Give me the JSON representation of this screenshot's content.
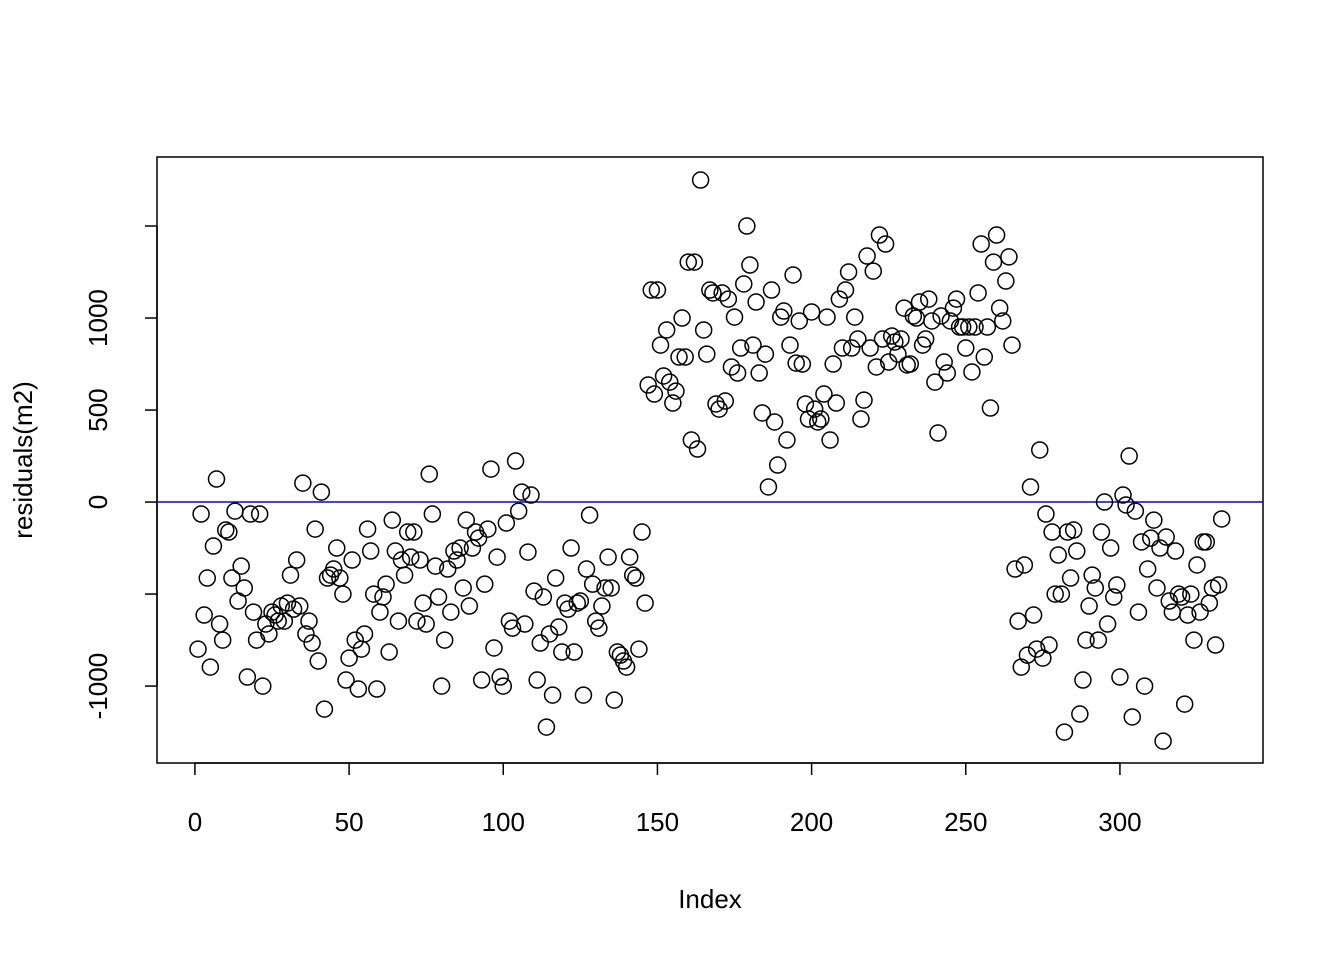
{
  "chart_data": {
    "type": "scatter",
    "xlabel": "Index",
    "ylabel": "residuals(m2)",
    "color": "#000000",
    "xlim": [
      -12.3,
      346.4
    ],
    "ylim": [
      -1418,
      1875
    ],
    "xticks": [
      0,
      50,
      100,
      150,
      200,
      250,
      300
    ],
    "yticks": [
      -1000,
      {
        "value": -500,
        "label": null
      },
      0,
      500,
      1000,
      {
        "value": 1500,
        "label": null
      }
    ],
    "hline": {
      "value": 0,
      "color": "#0000ff"
    },
    "x": [
      1,
      2,
      3,
      4,
      5,
      6,
      7,
      8,
      9,
      10,
      11,
      12,
      13,
      14,
      15,
      16,
      17,
      18,
      19,
      20,
      21,
      22,
      23,
      24,
      25,
      26,
      27,
      28,
      29,
      30,
      31,
      32,
      33,
      34,
      35,
      36,
      37,
      38,
      39,
      40,
      41,
      42,
      43,
      44,
      45,
      46,
      47,
      48,
      49,
      50,
      51,
      52,
      53,
      54,
      55,
      56,
      57,
      58,
      59,
      60,
      61,
      62,
      63,
      64,
      65,
      66,
      67,
      68,
      69,
      70,
      71,
      72,
      73,
      74,
      75,
      76,
      77,
      78,
      79,
      80,
      81,
      82,
      83,
      84,
      85,
      86,
      87,
      88,
      89,
      90,
      91,
      92,
      93,
      94,
      95,
      96,
      97,
      98,
      99,
      100,
      101,
      102,
      103,
      104,
      105,
      106,
      107,
      108,
      109,
      110,
      111,
      112,
      113,
      114,
      115,
      116,
      117,
      118,
      119,
      120,
      121,
      122,
      123,
      124,
      125,
      126,
      127,
      128,
      129,
      130,
      131,
      132,
      133,
      134,
      135,
      136,
      137,
      138,
      139,
      140,
      141,
      142,
      143,
      144,
      145,
      146,
      147,
      148,
      149,
      150,
      151,
      152,
      153,
      154,
      155,
      156,
      157,
      158,
      159,
      160,
      161,
      162,
      163,
      164,
      165,
      166,
      167,
      168,
      169,
      170,
      171,
      172,
      173,
      174,
      175,
      176,
      177,
      178,
      179,
      180,
      181,
      182,
      183,
      184,
      185,
      186,
      187,
      188,
      189,
      190,
      191,
      192,
      193,
      194,
      195,
      196,
      197,
      198,
      199,
      200,
      201,
      202,
      203,
      204,
      205,
      206,
      207,
      208,
      209,
      210,
      211,
      212,
      213,
      214,
      215,
      216,
      217,
      218,
      219,
      220,
      221,
      222,
      223,
      224,
      225,
      226,
      227,
      228,
      229,
      230,
      231,
      232,
      233,
      234,
      235,
      236,
      237,
      238,
      239,
      240,
      241,
      242,
      243,
      244,
      245,
      246,
      247,
      248,
      249,
      250,
      251,
      252,
      253,
      254,
      255,
      256,
      257,
      258,
      259,
      260,
      261,
      262,
      263,
      264,
      265,
      266,
      267,
      268,
      269,
      270,
      271,
      272,
      273,
      274,
      275,
      276,
      277,
      278,
      279,
      280,
      281,
      282,
      283,
      284,
      285,
      286,
      287,
      288,
      289,
      290,
      291,
      292,
      293,
      294,
      295,
      296,
      297,
      298,
      299,
      300,
      301,
      302,
      303,
      304,
      305,
      306,
      307,
      308,
      309,
      310,
      311,
      312,
      313,
      314,
      315,
      316,
      317,
      318,
      319,
      320,
      321,
      322,
      323,
      324,
      325,
      326,
      327,
      328,
      329,
      330,
      331,
      332,
      333
    ],
    "values": [
      -799,
      -65,
      -614,
      -413,
      -897,
      -239,
      125,
      -663,
      -750,
      -152,
      -163,
      -413,
      -49,
      -538,
      -348,
      -467,
      -951,
      -65,
      -598,
      -750,
      -65,
      -1000,
      -663,
      -717,
      -598,
      -614,
      -647,
      -565,
      -647,
      -549,
      -397,
      -582,
      -315,
      -565,
      103,
      -717,
      -647,
      -766,
      -147,
      -864,
      54,
      -1125,
      -413,
      -397,
      -364,
      -250,
      -413,
      -500,
      -967,
      -848,
      -315,
      -750,
      -1016,
      -799,
      -717,
      -147,
      -266,
      -500,
      -1016,
      -598,
      -516,
      -446,
      -815,
      -98,
      -266,
      -647,
      -315,
      -397,
      -163,
      -299,
      -163,
      -647,
      -315,
      -549,
      -663,
      152,
      -65,
      -348,
      -516,
      -1000,
      -750,
      -364,
      -598,
      -266,
      -315,
      -250,
      -467,
      -98,
      -565,
      -250,
      -163,
      -196,
      -967,
      -446,
      -147,
      179,
      -793,
      -299,
      -951,
      -1000,
      -114,
      -647,
      -685,
      223,
      -49,
      54,
      -663,
      -272,
      38,
      -484,
      -967,
      -766,
      -516,
      -1223,
      -717,
      -1049,
      -413,
      -679,
      -815,
      -549,
      -582,
      -250,
      -815,
      -549,
      -538,
      -1049,
      -364,
      -71,
      -446,
      -647,
      -685,
      -565,
      -467,
      -299,
      -467,
      -1076,
      -815,
      -832,
      -864,
      -897,
      -299,
      -397,
      -413,
      -799,
      -163,
      -549,
      636,
      1152,
      587,
      1152,
      853,
      685,
      935,
      652,
      538,
      603,
      788,
      1000,
      788,
      1304,
      337,
      1304,
      288,
      1750,
      935,
      804,
      1152,
      1136,
      533,
      505,
      1136,
      549,
      1103,
      734,
      1005,
      701,
      837,
      1185,
      1500,
      1288,
      853,
      1087,
      701,
      484,
      804,
      82,
      1152,
      435,
      201,
      1005,
      1038,
      337,
      853,
      1234,
      755,
      984,
      750,
      533,
      451,
      1033,
      505,
      435,
      451,
      587,
      1005,
      337,
      750,
      538,
      1103,
      837,
      1152,
      1250,
      837,
      1005,
      886,
      451,
      554,
      1337,
      837,
      1255,
      734,
      1451,
      886,
      1402,
      761,
      902,
      870,
      804,
      886,
      1054,
      745,
      750,
      1011,
      1000,
      1087,
      853,
      886,
      1103,
      984,
      652,
      375,
      1011,
      761,
      701,
      984,
      1054,
      1103,
      951,
      951,
      837,
      951,
      707,
      951,
      1136,
      1402,
      788,
      951,
      511,
      1304,
      1451,
      1054,
      984,
      1201,
      1332,
      853,
      -364,
      -647,
      -897,
      -342,
      -832,
      82,
      -614,
      -799,
      283,
      -848,
      -65,
      -777,
      -163,
      -500,
      -288,
      -500,
      -1250,
      -163,
      -413,
      -152,
      -266,
      -1152,
      -967,
      -750,
      -565,
      -397,
      -467,
      -750,
      -163,
      0,
      -663,
      -250,
      -516,
      -451,
      -951,
      38,
      -16,
      250,
      -1168,
      -49,
      -598,
      -217,
      -1000,
      -364,
      -196,
      -98,
      -467,
      -250,
      -1299,
      -190,
      -538,
      -598,
      -266,
      -500,
      -516,
      -1098,
      -614,
      -500,
      -750,
      -342,
      -598,
      -217,
      -217,
      -549,
      -467,
      -777,
      -451,
      -92
    ]
  }
}
